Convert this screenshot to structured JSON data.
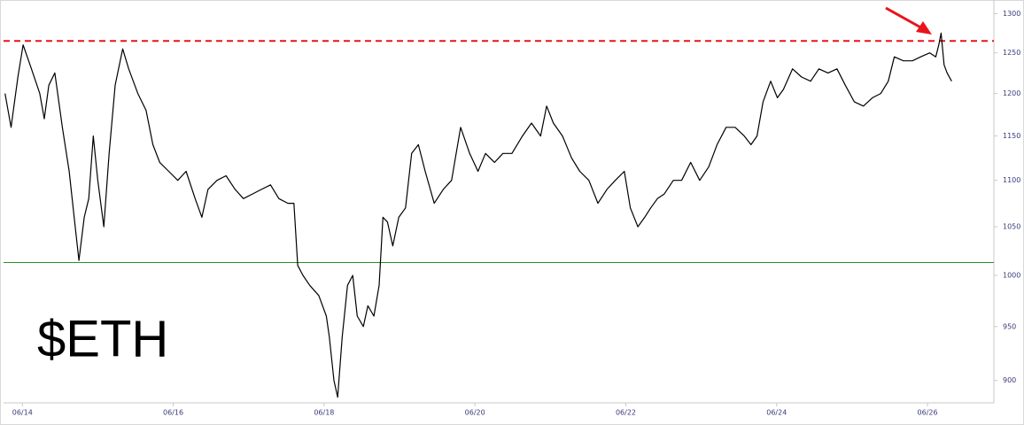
{
  "chart_data": {
    "type": "line",
    "label": "$ETH",
    "log_scale": true,
    "xlim": [
      13.75,
      26.88
    ],
    "xticks": [
      {
        "value": 14,
        "label": "06/14"
      },
      {
        "value": 16,
        "label": "06/16"
      },
      {
        "value": 18,
        "label": "06/18"
      },
      {
        "value": 20,
        "label": "06/20"
      },
      {
        "value": 22,
        "label": "06/22"
      },
      {
        "value": 24,
        "label": "06/24"
      },
      {
        "value": 26,
        "label": "06/26"
      }
    ],
    "ylim": [
      880,
      1318
    ],
    "yticks": [
      900,
      950,
      1000,
      1050,
      1100,
      1150,
      1200,
      1250,
      1300
    ],
    "hlines": [
      {
        "value": 1265,
        "color": "#e8141c",
        "style": "dashed"
      },
      {
        "value": 1013,
        "color": "#2e8b2e",
        "style": "solid"
      }
    ],
    "x": [
      13.77,
      13.85,
      13.94,
      14.01,
      14.12,
      14.23,
      14.29,
      14.35,
      14.43,
      14.53,
      14.62,
      14.7,
      14.75,
      14.82,
      14.88,
      14.94,
      15.0,
      15.08,
      15.15,
      15.23,
      15.33,
      15.41,
      15.53,
      15.64,
      15.73,
      15.82,
      15.94,
      16.06,
      16.17,
      16.29,
      16.38,
      16.46,
      16.58,
      16.7,
      16.82,
      16.93,
      17.05,
      17.17,
      17.29,
      17.4,
      17.52,
      17.6,
      17.65,
      17.72,
      17.81,
      17.93,
      18.03,
      18.07,
      18.13,
      18.18,
      18.24,
      18.31,
      18.38,
      18.44,
      18.52,
      18.58,
      18.66,
      18.73,
      18.78,
      18.84,
      18.91,
      18.99,
      19.08,
      19.16,
      19.25,
      19.34,
      19.46,
      19.58,
      19.69,
      19.81,
      19.93,
      20.04,
      20.14,
      20.26,
      20.37,
      20.49,
      20.63,
      20.75,
      20.87,
      20.95,
      21.04,
      21.16,
      21.28,
      21.39,
      21.51,
      21.63,
      21.75,
      21.86,
      21.98,
      22.06,
      22.16,
      22.25,
      22.33,
      22.42,
      22.51,
      22.63,
      22.74,
      22.86,
      22.98,
      23.1,
      23.21,
      23.33,
      23.45,
      23.57,
      23.66,
      23.74,
      23.82,
      23.92,
      24.01,
      24.09,
      24.21,
      24.33,
      24.45,
      24.56,
      24.68,
      24.8,
      24.91,
      25.03,
      25.15,
      25.27,
      25.38,
      25.48,
      25.56,
      25.68,
      25.8,
      25.91,
      26.03,
      26.11,
      26.15,
      26.18,
      26.22,
      26.26,
      26.32
    ],
    "series": [
      {
        "color": "#000000",
        "values": [
          1200,
          1160,
          1220,
          1260,
          1230,
          1200,
          1170,
          1210,
          1225,
          1160,
          1110,
          1050,
          1015,
          1060,
          1080,
          1150,
          1100,
          1050,
          1130,
          1210,
          1255,
          1230,
          1200,
          1180,
          1140,
          1120,
          1110,
          1100,
          1110,
          1080,
          1060,
          1090,
          1100,
          1105,
          1090,
          1080,
          1085,
          1090,
          1095,
          1080,
          1075,
          1075,
          1010,
          1000,
          990,
          980,
          960,
          940,
          900,
          885,
          940,
          990,
          1000,
          960,
          950,
          970,
          960,
          990,
          1060,
          1055,
          1030,
          1060,
          1070,
          1130,
          1140,
          1110,
          1075,
          1090,
          1100,
          1160,
          1130,
          1110,
          1130,
          1120,
          1130,
          1130,
          1150,
          1165,
          1150,
          1185,
          1165,
          1150,
          1125,
          1110,
          1100,
          1075,
          1090,
          1100,
          1110,
          1070,
          1050,
          1060,
          1070,
          1080,
          1085,
          1100,
          1100,
          1120,
          1100,
          1115,
          1140,
          1160,
          1160,
          1150,
          1140,
          1150,
          1190,
          1215,
          1195,
          1205,
          1230,
          1220,
          1215,
          1230,
          1225,
          1230,
          1210,
          1190,
          1185,
          1195,
          1200,
          1215,
          1245,
          1240,
          1240,
          1245,
          1250,
          1245,
          1260,
          1275,
          1235,
          1225,
          1215
        ]
      }
    ]
  }
}
